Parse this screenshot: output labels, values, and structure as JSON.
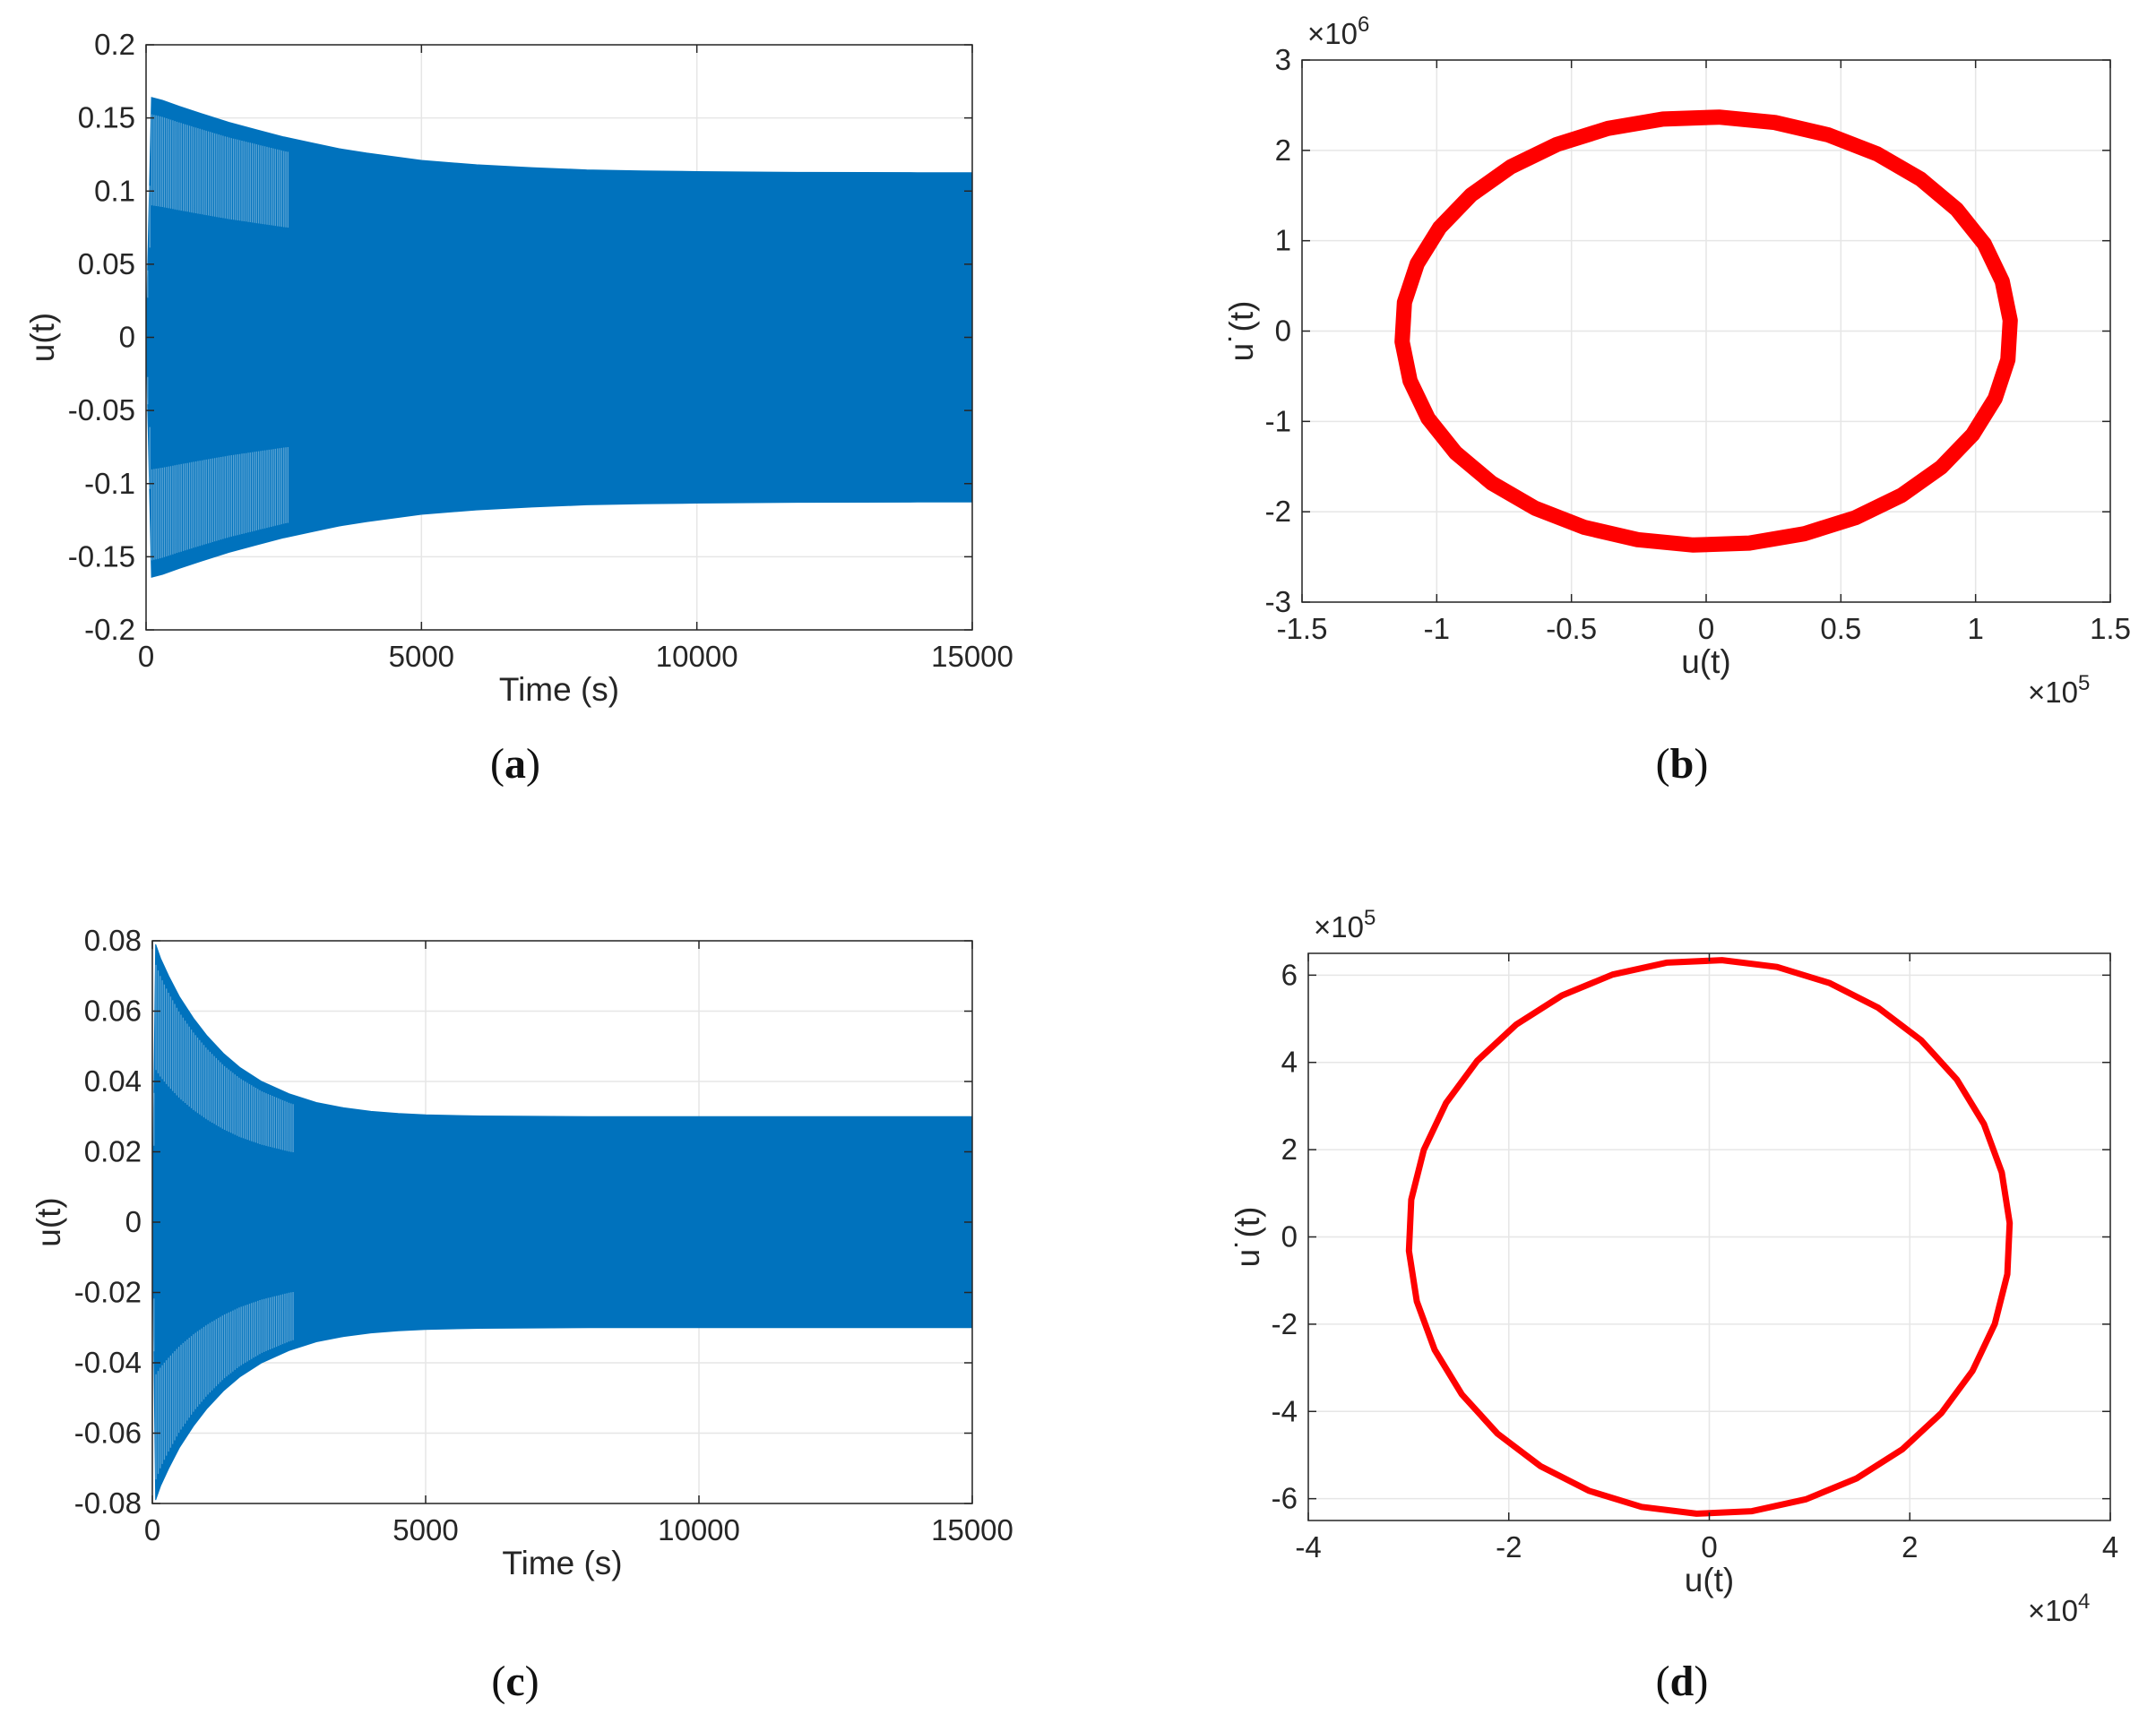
{
  "colors": {
    "wave": "#0072BD",
    "orbit": "#FF0000",
    "axis": "#262626",
    "grid": "#e6e6e6"
  },
  "chart_data": [
    {
      "id": "a",
      "type": "line",
      "caption": "a",
      "xlabel": "Time (s)",
      "ylabel": "u(t)",
      "xlim": [
        0,
        15000
      ],
      "ylim": [
        -0.2,
        0.2
      ],
      "xticks": [
        0,
        5000,
        10000,
        15000
      ],
      "xtick_labels": [
        "0",
        "5000",
        "10000",
        "15000"
      ],
      "yticks": [
        -0.2,
        -0.15,
        -0.1,
        -0.05,
        0,
        0.05,
        0.1,
        0.15,
        0.2
      ],
      "ytick_labels": [
        "-0.2",
        "-0.15",
        "-0.1",
        "-0.05",
        "0",
        "0.05",
        "0.1",
        "0.15",
        "0.2"
      ],
      "grid": true,
      "series": [
        {
          "color": "#0072BD",
          "envelope": {
            "t": [
              0,
              100,
              300,
              600,
              1000,
              1500,
              2000,
              2500,
              3000,
              3500,
              4000,
              5000,
              6000,
              7000,
              8000,
              9000,
              10000,
              11000,
              12000,
              13000,
              14000,
              15000
            ],
            "upper": [
              0,
              0.164,
              0.162,
              0.158,
              0.153,
              0.147,
              0.142,
              0.137,
              0.133,
              0.129,
              0.126,
              0.121,
              0.118,
              0.116,
              0.1145,
              0.1138,
              0.1133,
              0.113,
              0.1128,
              0.1127,
              0.1126,
              0.1125
            ]
          }
        }
      ]
    },
    {
      "id": "b",
      "type": "line",
      "caption": "b",
      "xlabel": "u(t)",
      "ylabel": "u˙(t)",
      "x_exponent": "5",
      "y_exponent": "6",
      "xlim": [
        -150000,
        150000
      ],
      "ylim": [
        -3000000,
        3000000
      ],
      "xticks": [
        -150000,
        -100000,
        -50000,
        0,
        50000,
        100000,
        150000
      ],
      "xtick_labels": [
        "-1.5",
        "-1",
        "-0.5",
        "0",
        "0.5",
        "1",
        "1.5"
      ],
      "yticks": [
        -3000000,
        -2000000,
        -1000000,
        0,
        1000000,
        2000000,
        3000000
      ],
      "ytick_labels": [
        "-3",
        "-2",
        "-1",
        "0",
        "1",
        "2",
        "3"
      ],
      "grid": true,
      "series": [
        {
          "color": "#FF0000",
          "thick": true,
          "orbit": {
            "x_amp": 113000,
            "y_amp": 2370000,
            "points": 34
          }
        }
      ]
    },
    {
      "id": "c",
      "type": "line",
      "caption": "c",
      "xlabel": "Time (s)",
      "ylabel": "u(t)",
      "xlim": [
        0,
        15000
      ],
      "ylim": [
        -0.08,
        0.08
      ],
      "xticks": [
        0,
        5000,
        10000,
        15000
      ],
      "xtick_labels": [
        "0",
        "5000",
        "10000",
        "15000"
      ],
      "yticks": [
        -0.08,
        -0.06,
        -0.04,
        -0.02,
        0,
        0.02,
        0.04,
        0.06,
        0.08
      ],
      "ytick_labels": [
        "-0.08",
        "-0.06",
        "-0.04",
        "-0.02",
        "0",
        "0.02",
        "0.04",
        "0.06",
        "0.08"
      ],
      "grid": true,
      "series": [
        {
          "color": "#0072BD",
          "envelope": {
            "t": [
              0,
              60,
              150,
              300,
              500,
              750,
              1000,
              1300,
              1600,
              2000,
              2500,
              3000,
              3500,
              4000,
              4500,
              5000,
              6000,
              7000,
              8000,
              10000,
              12000,
              15000
            ],
            "upper": [
              0,
              0.079,
              0.075,
              0.07,
              0.064,
              0.058,
              0.053,
              0.048,
              0.044,
              0.04,
              0.0365,
              0.034,
              0.0325,
              0.0315,
              0.0309,
              0.0305,
              0.0302,
              0.0301,
              0.03,
              0.03,
              0.03,
              0.03
            ]
          }
        }
      ]
    },
    {
      "id": "d",
      "type": "line",
      "caption": "d",
      "xlabel": "u(t)",
      "ylabel": "u˙(t)",
      "x_exponent": "4",
      "y_exponent": "5",
      "xlim": [
        -40000,
        40000
      ],
      "ylim": [
        -650000,
        650000
      ],
      "xticks": [
        -40000,
        -20000,
        0,
        20000,
        40000
      ],
      "xtick_labels": [
        "-4",
        "-2",
        "0",
        "2",
        "4"
      ],
      "yticks": [
        -600000,
        -400000,
        -200000,
        0,
        200000,
        400000,
        600000
      ],
      "ytick_labels": [
        "-6",
        "-4",
        "-2",
        "0",
        "2",
        "4",
        "6"
      ],
      "grid": true,
      "series": [
        {
          "color": "#FF0000",
          "thick": false,
          "orbit": {
            "x_amp": 30000,
            "y_amp": 635000,
            "points": 34
          }
        }
      ]
    }
  ]
}
